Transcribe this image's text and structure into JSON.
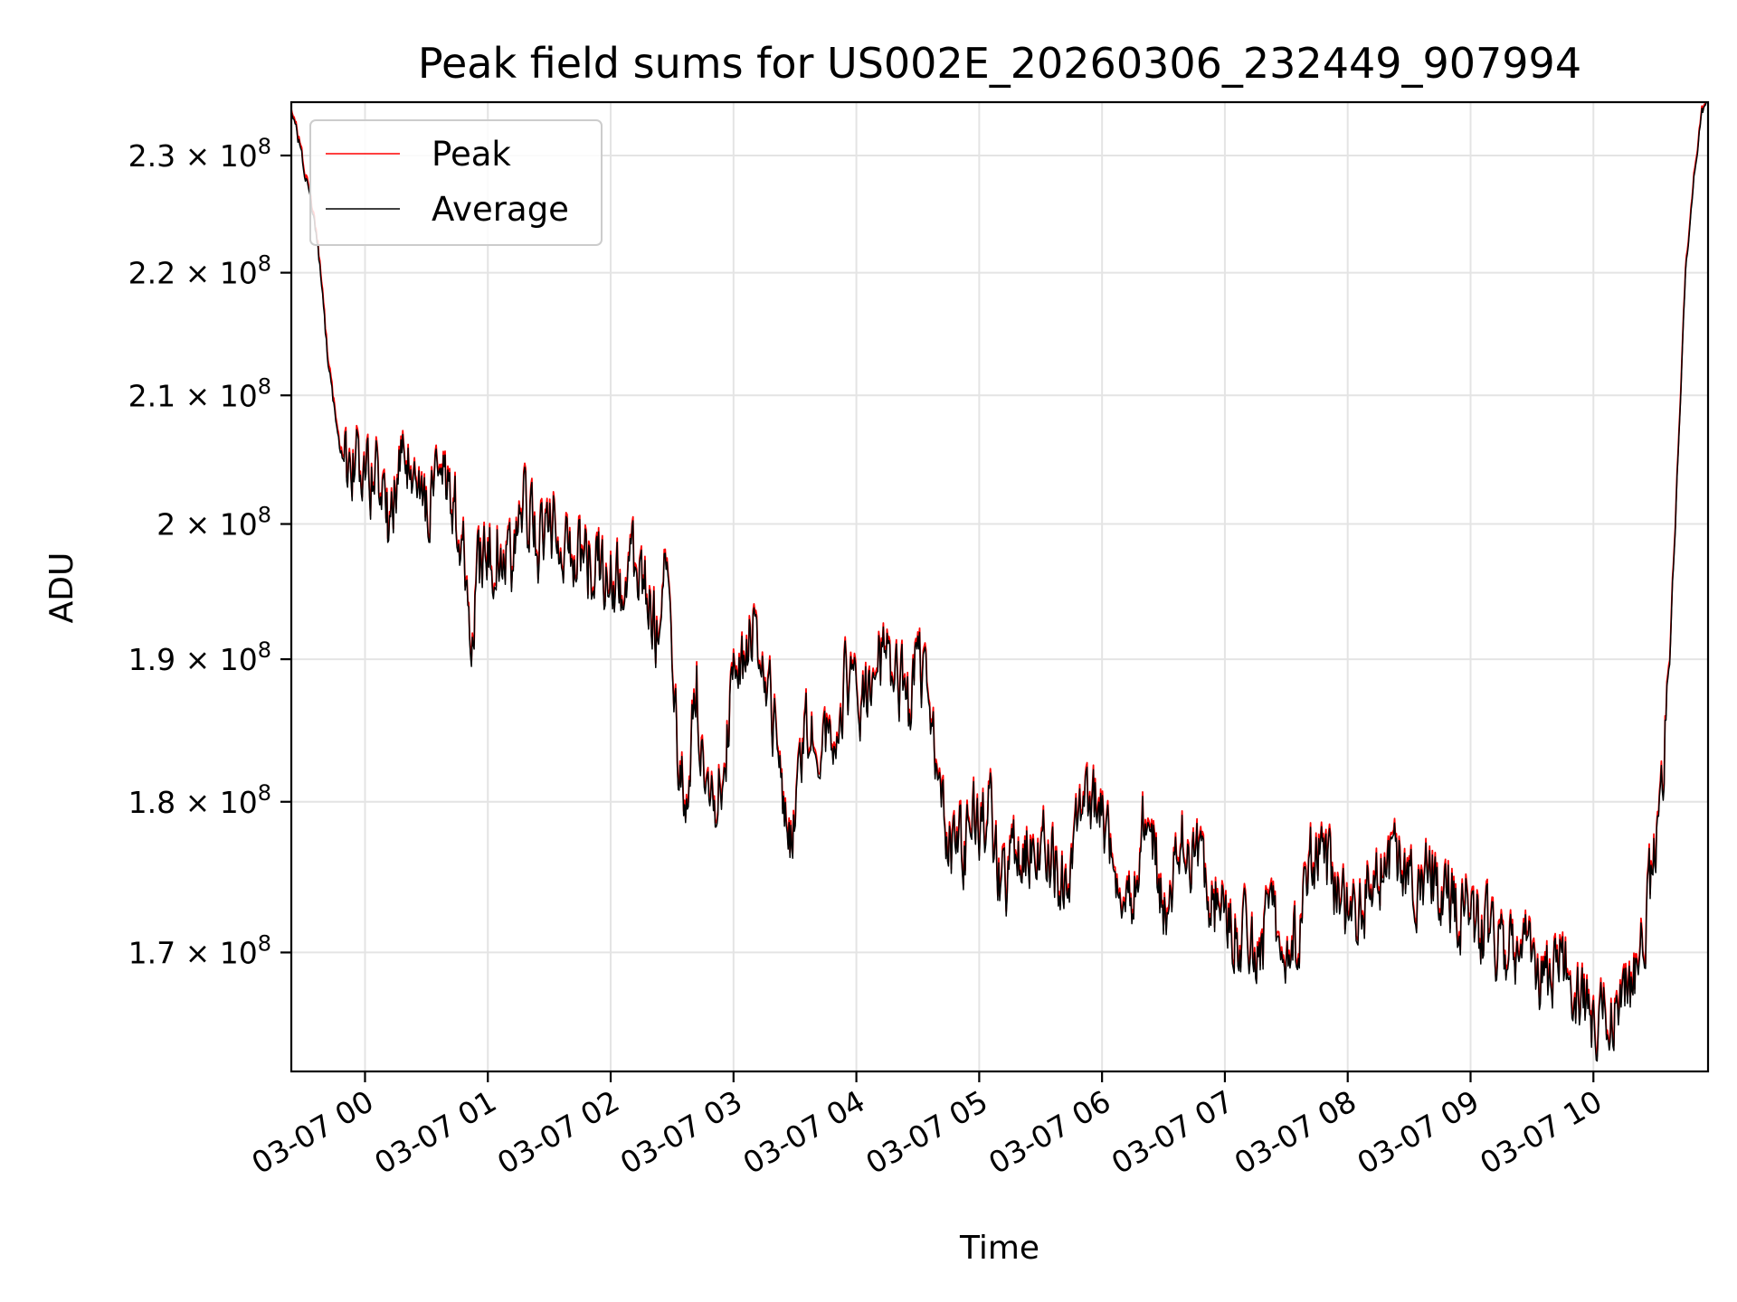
{
  "chart_data": {
    "type": "line",
    "title": "Peak field sums for US002E_20260306_232449_907994",
    "xlabel": "Time",
    "ylabel": "ADU",
    "yscale": "log",
    "grid": true,
    "legend_position": "top-left",
    "xlim": [
      "2026-03-06 23:24",
      "2026-03-07 10:56"
    ],
    "ylim": [
      162500000,
      234700000
    ],
    "x_ticks": [
      "03-07 00",
      "03-07 01",
      "03-07 02",
      "03-07 03",
      "03-07 04",
      "03-07 05",
      "03-07 06",
      "03-07 07",
      "03-07 08",
      "03-07 09",
      "03-07 10"
    ],
    "y_ticks": [
      {
        "value": 170000000,
        "mantissa": "1.7",
        "exponent": "8"
      },
      {
        "value": 180000000,
        "mantissa": "1.8",
        "exponent": "8"
      },
      {
        "value": 190000000,
        "mantissa": "1.9",
        "exponent": "8"
      },
      {
        "value": 200000000,
        "mantissa": "2",
        "exponent": "8"
      },
      {
        "value": 210000000,
        "mantissa": "2.1",
        "exponent": "8"
      },
      {
        "value": 220000000,
        "mantissa": "2.2",
        "exponent": "8"
      },
      {
        "value": 230000000,
        "mantissa": "2.3",
        "exponent": "8"
      }
    ],
    "series": [
      {
        "name": "Peak",
        "color": "#ff0000",
        "x": [
          "2026-03-06 23:24",
          "2026-03-06 23:30",
          "2026-03-06 23:37",
          "2026-03-06 23:42",
          "2026-03-06 23:48",
          "2026-03-06 23:55",
          "2026-03-07 00:05",
          "2026-03-07 00:12",
          "2026-03-07 00:18",
          "2026-03-07 00:25",
          "2026-03-07 00:33",
          "2026-03-07 00:40",
          "2026-03-07 00:48",
          "2026-03-07 00:52",
          "2026-03-07 00:55",
          "2026-03-07 01:05",
          "2026-03-07 01:12",
          "2026-03-07 01:18",
          "2026-03-07 01:25",
          "2026-03-07 01:32",
          "2026-03-07 01:40",
          "2026-03-07 01:48",
          "2026-03-07 01:55",
          "2026-03-07 02:05",
          "2026-03-07 02:15",
          "2026-03-07 02:22",
          "2026-03-07 02:28",
          "2026-03-07 02:30",
          "2026-03-07 02:33",
          "2026-03-07 02:37",
          "2026-03-07 02:42",
          "2026-03-07 02:48",
          "2026-03-07 02:55",
          "2026-03-07 03:00",
          "2026-03-07 03:10",
          "2026-03-07 03:20",
          "2026-03-07 03:28",
          "2026-03-07 03:35",
          "2026-03-07 03:45",
          "2026-03-07 03:55",
          "2026-03-07 04:05",
          "2026-03-07 04:15",
          "2026-03-07 04:25",
          "2026-03-07 04:30",
          "2026-03-07 04:38",
          "2026-03-07 04:45",
          "2026-03-07 04:55",
          "2026-03-07 05:05",
          "2026-03-07 05:10",
          "2026-03-07 05:20",
          "2026-03-07 05:30",
          "2026-03-07 05:40",
          "2026-03-07 05:50",
          "2026-03-07 05:58",
          "2026-03-07 06:05",
          "2026-03-07 06:15",
          "2026-03-07 06:22",
          "2026-03-07 06:30",
          "2026-03-07 06:40",
          "2026-03-07 06:50",
          "2026-03-07 07:00",
          "2026-03-07 07:15",
          "2026-03-07 07:25",
          "2026-03-07 07:35",
          "2026-03-07 07:45",
          "2026-03-07 07:52",
          "2026-03-07 08:00",
          "2026-03-07 08:10",
          "2026-03-07 08:22",
          "2026-03-07 08:30",
          "2026-03-07 08:40",
          "2026-03-07 08:50",
          "2026-03-07 09:00",
          "2026-03-07 09:15",
          "2026-03-07 09:25",
          "2026-03-07 09:35",
          "2026-03-07 09:45",
          "2026-03-07 10:00",
          "2026-03-07 10:10",
          "2026-03-07 10:18",
          "2026-03-07 10:25",
          "2026-03-07 10:30",
          "2026-03-07 10:35",
          "2026-03-07 10:40",
          "2026-03-07 10:45",
          "2026-03-07 10:50",
          "2026-03-07 10:53",
          "2026-03-07 10:56"
        ],
        "values": [
          234500000,
          229500000,
          222500000,
          213000000,
          205500000,
          205000000,
          204000000,
          199700000,
          207500000,
          201000000,
          202500000,
          203000000,
          199500000,
          192500000,
          196500000,
          199000000,
          196500000,
          201500000,
          198000000,
          200500000,
          198500000,
          197500000,
          197000000,
          195500000,
          197500000,
          192000000,
          196500000,
          189000000,
          182500000,
          180000000,
          188000000,
          179000000,
          183000000,
          188000000,
          192500000,
          186000000,
          177500000,
          185000000,
          184500000,
          188500000,
          187000000,
          191500000,
          186500000,
          190000000,
          184000000,
          177000000,
          178000000,
          180000000,
          174500000,
          176500000,
          178500000,
          175000000,
          178500000,
          180500000,
          177000000,
          174500000,
          180500000,
          172500000,
          178500000,
          175000000,
          172500000,
          170500000,
          172500000,
          170500000,
          178000000,
          175000000,
          172500000,
          174000000,
          176500000,
          174500000,
          175500000,
          174000000,
          172500000,
          171000000,
          170500000,
          168500000,
          170000000,
          165500000,
          167000000,
          168000000,
          172000000,
          176000000,
          185000000,
          200000000,
          220000000,
          230000000,
          234000000,
          234700000
        ]
      },
      {
        "name": "Average",
        "color": "#000000",
        "x": [
          "2026-03-06 23:24",
          "2026-03-06 23:30",
          "2026-03-06 23:37",
          "2026-03-06 23:42",
          "2026-03-06 23:48",
          "2026-03-06 23:55",
          "2026-03-07 00:05",
          "2026-03-07 00:12",
          "2026-03-07 00:18",
          "2026-03-07 00:25",
          "2026-03-07 00:33",
          "2026-03-07 00:40",
          "2026-03-07 00:48",
          "2026-03-07 00:52",
          "2026-03-07 00:55",
          "2026-03-07 01:05",
          "2026-03-07 01:12",
          "2026-03-07 01:18",
          "2026-03-07 01:25",
          "2026-03-07 01:32",
          "2026-03-07 01:40",
          "2026-03-07 01:48",
          "2026-03-07 01:55",
          "2026-03-07 02:05",
          "2026-03-07 02:15",
          "2026-03-07 02:22",
          "2026-03-07 02:28",
          "2026-03-07 02:30",
          "2026-03-07 02:33",
          "2026-03-07 02:37",
          "2026-03-07 02:42",
          "2026-03-07 02:48",
          "2026-03-07 02:55",
          "2026-03-07 03:00",
          "2026-03-07 03:10",
          "2026-03-07 03:20",
          "2026-03-07 03:28",
          "2026-03-07 03:35",
          "2026-03-07 03:45",
          "2026-03-07 03:55",
          "2026-03-07 04:05",
          "2026-03-07 04:15",
          "2026-03-07 04:25",
          "2026-03-07 04:30",
          "2026-03-07 04:38",
          "2026-03-07 04:45",
          "2026-03-07 04:55",
          "2026-03-07 05:05",
          "2026-03-07 05:10",
          "2026-03-07 05:20",
          "2026-03-07 05:30",
          "2026-03-07 05:40",
          "2026-03-07 05:50",
          "2026-03-07 05:58",
          "2026-03-07 06:05",
          "2026-03-07 06:15",
          "2026-03-07 06:22",
          "2026-03-07 06:30",
          "2026-03-07 06:40",
          "2026-03-07 06:50",
          "2026-03-07 07:00",
          "2026-03-07 07:15",
          "2026-03-07 07:25",
          "2026-03-07 07:35",
          "2026-03-07 07:45",
          "2026-03-07 07:52",
          "2026-03-07 08:00",
          "2026-03-07 08:10",
          "2026-03-07 08:22",
          "2026-03-07 08:30",
          "2026-03-07 08:40",
          "2026-03-07 08:50",
          "2026-03-07 09:00",
          "2026-03-07 09:15",
          "2026-03-07 09:25",
          "2026-03-07 09:35",
          "2026-03-07 09:45",
          "2026-03-07 10:00",
          "2026-03-07 10:10",
          "2026-03-07 10:18",
          "2026-03-07 10:25",
          "2026-03-07 10:30",
          "2026-03-07 10:35",
          "2026-03-07 10:40",
          "2026-03-07 10:45",
          "2026-03-07 10:50",
          "2026-03-07 10:53",
          "2026-03-07 10:56"
        ],
        "values": [
          234300000,
          229200000,
          222200000,
          212600000,
          205200000,
          204700000,
          203700000,
          199400000,
          207200000,
          200700000,
          202200000,
          202700000,
          199200000,
          192200000,
          196200000,
          198700000,
          196200000,
          201200000,
          197700000,
          200200000,
          198200000,
          197200000,
          196700000,
          195200000,
          197200000,
          191700000,
          196200000,
          188700000,
          182200000,
          179700000,
          187700000,
          178700000,
          182700000,
          187700000,
          192200000,
          185700000,
          177200000,
          184700000,
          184200000,
          188200000,
          186700000,
          191200000,
          186200000,
          189700000,
          183700000,
          176700000,
          177700000,
          179700000,
          174200000,
          176200000,
          178200000,
          174700000,
          178200000,
          180200000,
          176700000,
          174200000,
          180200000,
          172200000,
          178200000,
          174700000,
          172200000,
          170200000,
          172200000,
          170200000,
          177700000,
          174700000,
          172200000,
          173700000,
          176200000,
          174200000,
          175200000,
          173700000,
          172200000,
          170700000,
          170200000,
          168200000,
          169700000,
          165200000,
          166700000,
          167700000,
          171700000,
          175700000,
          184700000,
          199700000,
          219700000,
          229700000,
          233800000,
          234600000
        ]
      }
    ]
  }
}
